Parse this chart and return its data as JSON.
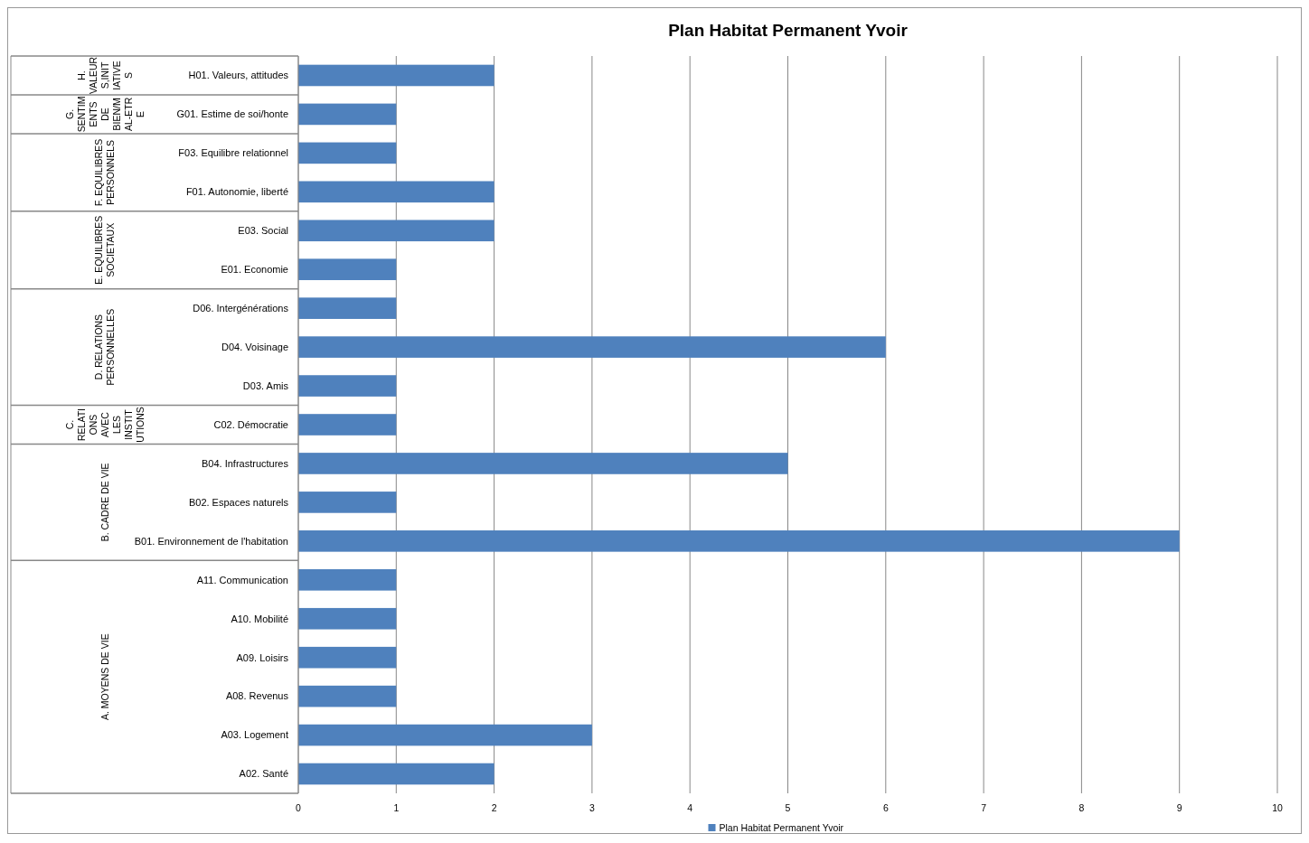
{
  "chart_data": {
    "type": "bar",
    "orientation": "horizontal",
    "title": "Plan Habitat Permanent Yvoir",
    "categories": [
      "H01. Valeurs, attitudes",
      "G01. Estime de soi/honte",
      "F03. Equilibre relationnel",
      "F01. Autonomie, liberté",
      "E03. Social",
      "E01. Economie",
      "D06. Intergénérations",
      "D04. Voisinage",
      "D03. Amis",
      "C02. Démocratie",
      "B04. Infrastructures",
      "B02. Espaces naturels",
      "B01. Environnement de l'habitation",
      "A11. Communication",
      "A10. Mobilité",
      "A09. Loisirs",
      "A08. Revenus",
      "A03. Logement",
      "A02. Santé"
    ],
    "series": [
      {
        "name": "Plan Habitat Permanent Yvoir",
        "color": "#4f81bd",
        "values": [
          2,
          1,
          1,
          2,
          2,
          1,
          1,
          6,
          1,
          1,
          5,
          1,
          9,
          1,
          1,
          1,
          1,
          3,
          2
        ]
      }
    ],
    "xlim": [
      0,
      10
    ],
    "xticks": [
      0,
      1,
      2,
      3,
      4,
      5,
      6,
      7,
      8,
      9,
      10
    ],
    "grid": "x",
    "legend": "bottom",
    "annotations": [
      "H. VALEURS,INITIATIVES",
      "G. SENTIMENTS DE BIEN/MAL-ETRE",
      "F. EQUILIBRES PERSONNELS",
      "E. EQUILIBRES SOCIETAUX",
      "D. RELATIONS PERSONNELLES",
      "C. RELATIONS AVEC LES INSTITUTIONS",
      "B. CADRE DE VIE",
      "A. MOYENS DE VIE"
    ]
  }
}
